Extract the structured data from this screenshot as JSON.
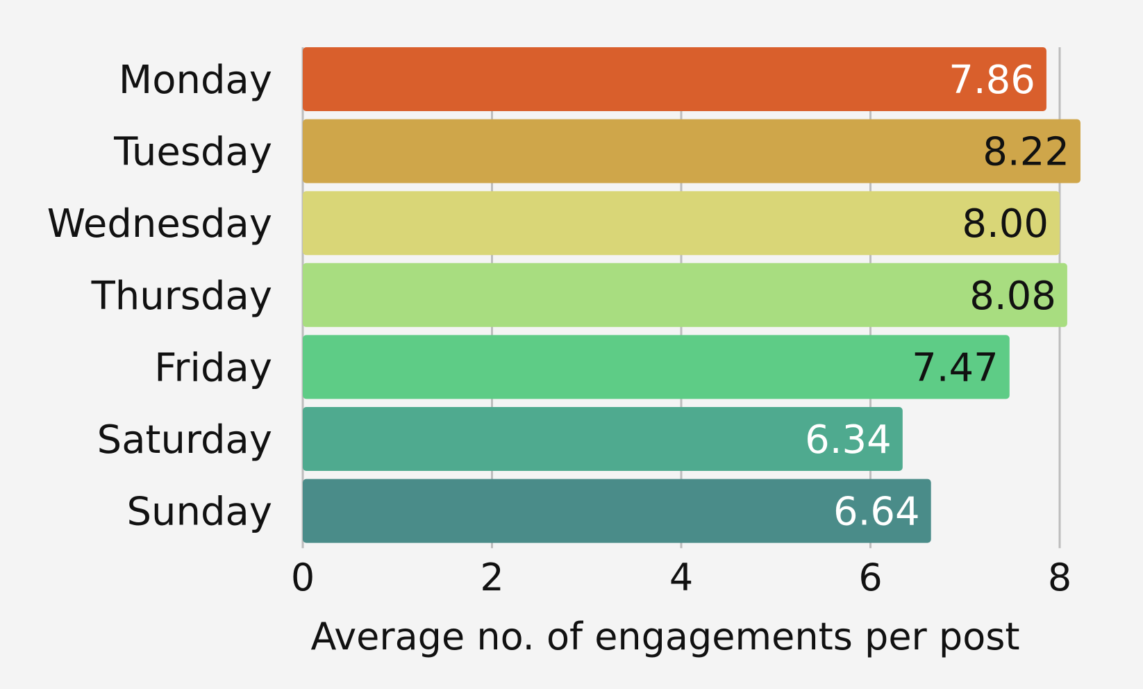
{
  "chart_data": {
    "type": "bar",
    "orientation": "horizontal",
    "title": "",
    "xlabel": "Average no. of engagements per post",
    "ylabel": "",
    "xlim": [
      0,
      8.3
    ],
    "xticks": [
      0,
      2,
      4,
      6,
      8
    ],
    "grid": true,
    "categories": [
      "Monday",
      "Tuesday",
      "Wednesday",
      "Thursday",
      "Friday",
      "Saturday",
      "Sunday"
    ],
    "values": [
      7.86,
      8.22,
      8.0,
      8.08,
      7.47,
      6.34,
      6.64
    ],
    "value_labels": [
      "7.86",
      "8.22",
      "8.00",
      "8.08",
      "7.47",
      "6.34",
      "6.64"
    ],
    "colors": [
      "#d95f2c",
      "#cfa64a",
      "#d9d677",
      "#a8dd80",
      "#5ecc86",
      "#4faa8f",
      "#4a8c89"
    ],
    "label_colors": [
      "#ffffff",
      "#111111",
      "#111111",
      "#111111",
      "#111111",
      "#ffffff",
      "#ffffff"
    ]
  }
}
